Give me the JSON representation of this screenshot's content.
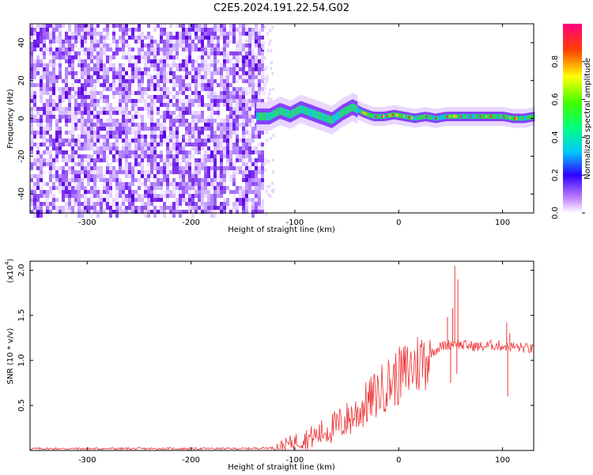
{
  "title": "C2E5.2024.191.22.54.G02",
  "chart_data": [
    {
      "type": "heatmap",
      "xlabel": "Height of straight line (km)",
      "ylabel": "Frequency (Hz)",
      "xlim": [
        -355,
        130
      ],
      "ylim": [
        -50,
        50
      ],
      "xticks": [
        -300,
        -200,
        -100,
        0,
        100
      ],
      "yticks": [
        -40,
        -20,
        0,
        20,
        40
      ],
      "noise_region_x": [
        -355,
        -132
      ],
      "signal_band_center_hz": 0,
      "signal_track": {
        "x": [
          -137,
          -125,
          -115,
          -105,
          -95,
          -85,
          -75,
          -65,
          -55,
          -45,
          -35,
          -25,
          -15,
          -5,
          5,
          15,
          25,
          35,
          45,
          60,
          75,
          90,
          100,
          110,
          120,
          130
        ],
        "freq": [
          1,
          1,
          4,
          2,
          5,
          3,
          1,
          -1,
          3,
          6,
          3,
          1,
          1,
          2,
          1,
          0,
          1,
          0,
          1,
          1,
          1,
          1,
          1,
          0,
          0,
          1
        ]
      },
      "colorbar": {
        "label": "Normalized spectral amplitude",
        "ticks": [
          "0.0",
          "0.2",
          "0.4",
          "0.6",
          "0.8"
        ],
        "range": [
          0,
          1
        ]
      }
    },
    {
      "type": "line",
      "xlabel": "Height of straight line (km)",
      "ylabel": "SNR (10 * v/v)",
      "y_multiplier_label": "(x10",
      "y_multiplier_exp": "4",
      "y_multiplier_close": ")",
      "xlim": [
        -355,
        130
      ],
      "ylim": [
        0,
        2.1
      ],
      "xticks": [
        -300,
        -200,
        -100,
        0,
        100
      ],
      "yticks": [
        "0.5",
        "1.0",
        "1.5",
        "2.0"
      ],
      "series": [
        {
          "color": "#ee3333",
          "x": [
            -355,
            -300,
            -250,
            -200,
            -150,
            -120,
            -110,
            -100,
            -90,
            -80,
            -70,
            -60,
            -50,
            -40,
            -30,
            -20,
            -10,
            0,
            10,
            20,
            30,
            40,
            50,
            55,
            60,
            70,
            80,
            90,
            100,
            110,
            120,
            130
          ],
          "y": [
            0.02,
            0.02,
            0.02,
            0.02,
            0.02,
            0.03,
            0.06,
            0.1,
            0.13,
            0.16,
            0.22,
            0.27,
            0.34,
            0.42,
            0.53,
            0.64,
            0.75,
            0.82,
            0.9,
            0.98,
            1.08,
            1.15,
            1.18,
            1.2,
            1.17,
            1.16,
            1.15,
            1.17,
            1.16,
            1.15,
            1.14,
            1.12
          ]
        }
      ],
      "spikes": [
        {
          "x": 47,
          "y": 1.48
        },
        {
          "x": 50,
          "y": 0.75
        },
        {
          "x": 52,
          "y": 1.58
        },
        {
          "x": 54,
          "y": 2.05
        },
        {
          "x": 56,
          "y": 0.85
        },
        {
          "x": 57,
          "y": 1.9
        },
        {
          "x": 104,
          "y": 1.42
        },
        {
          "x": 105,
          "y": 0.6
        },
        {
          "x": 107,
          "y": 1.3
        }
      ]
    }
  ]
}
